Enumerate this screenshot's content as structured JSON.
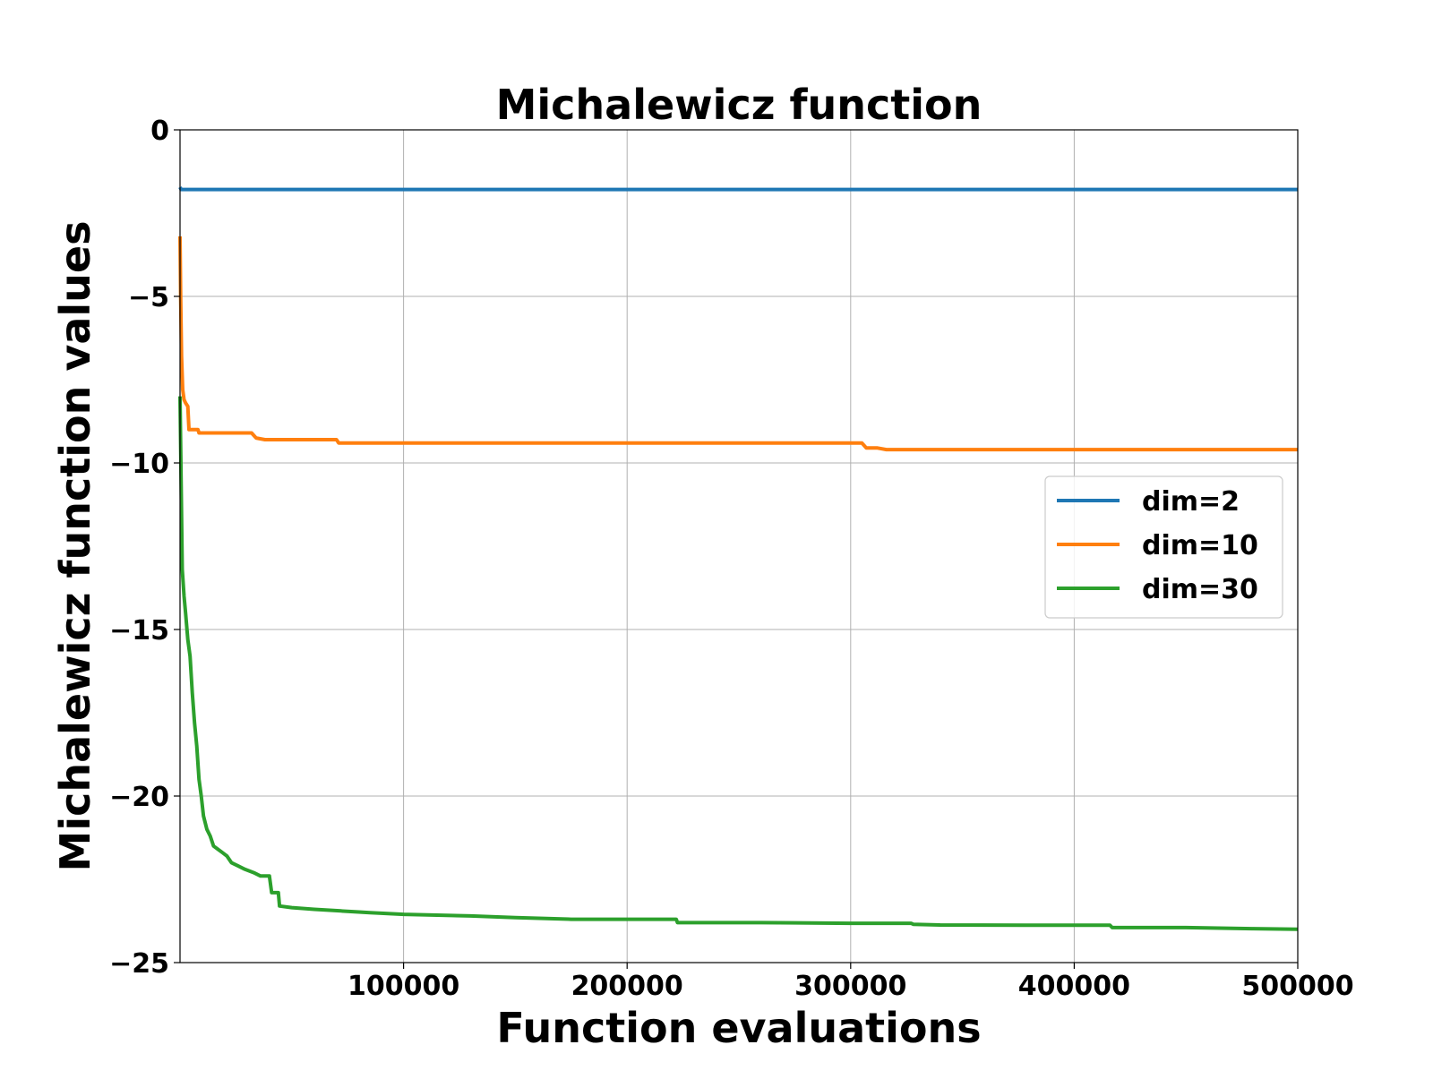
{
  "chart_data": {
    "type": "line",
    "title": "Michalewicz function",
    "xlabel": "Function evaluations",
    "ylabel": "Michalewicz function values",
    "xlim": [
      0,
      500000
    ],
    "ylim": [
      -25,
      0
    ],
    "xticks": [
      100000,
      200000,
      300000,
      400000,
      500000
    ],
    "xtick_labels": [
      "100000",
      "200000",
      "300000",
      "400000",
      "500000"
    ],
    "yticks": [
      0,
      -5,
      -10,
      -15,
      -20,
      -25
    ],
    "ytick_labels": [
      "0",
      "−5",
      "−10",
      "−15",
      "−20",
      "−25"
    ],
    "grid": true,
    "legend_position": "center-right",
    "series": [
      {
        "name": "dim=2",
        "color": "#1f77b4",
        "points": [
          [
            0,
            -1.72
          ],
          [
            500,
            -1.79
          ],
          [
            500000,
            -1.79
          ]
        ]
      },
      {
        "name": "dim=10",
        "color": "#ff7f0e",
        "points": [
          [
            0,
            -3.2
          ],
          [
            300,
            -5.0
          ],
          [
            700,
            -6.8
          ],
          [
            1200,
            -7.8
          ],
          [
            1800,
            -8.1
          ],
          [
            2500,
            -8.2
          ],
          [
            3500,
            -8.3
          ],
          [
            4000,
            -9.0
          ],
          [
            8000,
            -9.0
          ],
          [
            8500,
            -9.1
          ],
          [
            32000,
            -9.1
          ],
          [
            34000,
            -9.25
          ],
          [
            38000,
            -9.3
          ],
          [
            70000,
            -9.3
          ],
          [
            71000,
            -9.4
          ],
          [
            305000,
            -9.4
          ],
          [
            307000,
            -9.55
          ],
          [
            312000,
            -9.55
          ],
          [
            316000,
            -9.6
          ],
          [
            500000,
            -9.6
          ]
        ]
      },
      {
        "name": "dim=30",
        "color": "#2ca02c",
        "points": [
          [
            0,
            -8.0
          ],
          [
            500,
            -10.5
          ],
          [
            1000,
            -13.2
          ],
          [
            1800,
            -14.0
          ],
          [
            2500,
            -14.5
          ],
          [
            3500,
            -15.3
          ],
          [
            4500,
            -15.8
          ],
          [
            5500,
            -16.9
          ],
          [
            6500,
            -17.8
          ],
          [
            7500,
            -18.5
          ],
          [
            8500,
            -19.5
          ],
          [
            9500,
            -20.0
          ],
          [
            10500,
            -20.6
          ],
          [
            12000,
            -21.0
          ],
          [
            13500,
            -21.2
          ],
          [
            15000,
            -21.5
          ],
          [
            17000,
            -21.6
          ],
          [
            19000,
            -21.7
          ],
          [
            21000,
            -21.8
          ],
          [
            23000,
            -22.0
          ],
          [
            26000,
            -22.1
          ],
          [
            29000,
            -22.2
          ],
          [
            33000,
            -22.3
          ],
          [
            36000,
            -22.4
          ],
          [
            40000,
            -22.4
          ],
          [
            41000,
            -22.9
          ],
          [
            44000,
            -22.9
          ],
          [
            44500,
            -23.3
          ],
          [
            50000,
            -23.35
          ],
          [
            60000,
            -23.4
          ],
          [
            72000,
            -23.45
          ],
          [
            85000,
            -23.5
          ],
          [
            100000,
            -23.55
          ],
          [
            130000,
            -23.6
          ],
          [
            150000,
            -23.65
          ],
          [
            175000,
            -23.7
          ],
          [
            200000,
            -23.7
          ],
          [
            222000,
            -23.7
          ],
          [
            222500,
            -23.8
          ],
          [
            260000,
            -23.8
          ],
          [
            300000,
            -23.82
          ],
          [
            327000,
            -23.82
          ],
          [
            328000,
            -23.85
          ],
          [
            340000,
            -23.87
          ],
          [
            380000,
            -23.88
          ],
          [
            416000,
            -23.88
          ],
          [
            417000,
            -23.95
          ],
          [
            450000,
            -23.95
          ],
          [
            480000,
            -23.98
          ],
          [
            500000,
            -24.0
          ]
        ]
      }
    ]
  }
}
